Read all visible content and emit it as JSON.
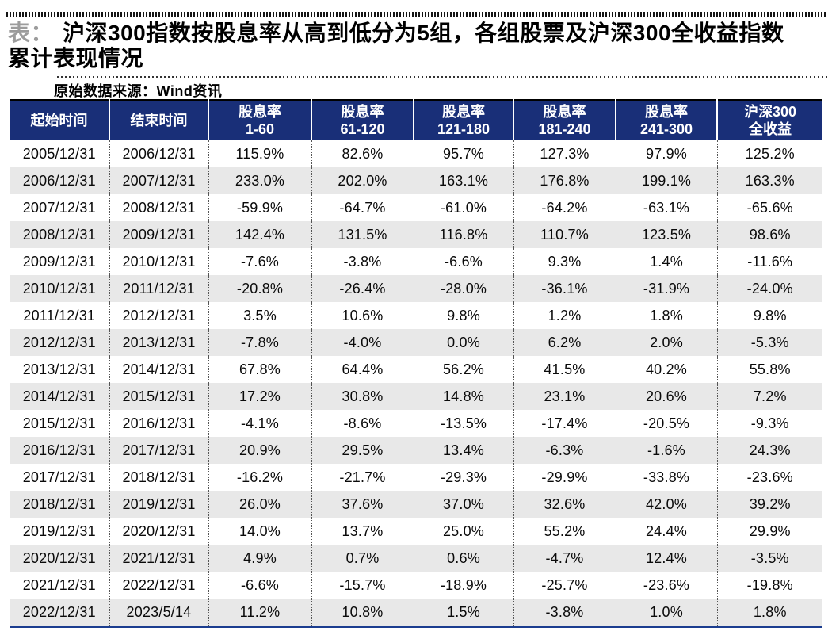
{
  "figure": {
    "title_prefix": "表：",
    "title_line1": "沪深300指数按股息率从高到低分为5组，各组股票及沪深300全收益指数",
    "title_line2": "累计表现情况",
    "source_label": "原始数据来源：Wind资讯"
  },
  "colors": {
    "header_bg": "#192F78",
    "header_text": "#FFFFFF",
    "row_alt_bg": "#E8E8E8",
    "bottom_rule": "#1B3D8F",
    "title_prefix_color": "#9C9C9C"
  },
  "chart_data": {
    "type": "table",
    "title": "沪深300指数按股息率从高到低分为5组，各组股票及沪深300全收益指数累计表现情况",
    "source": "原始数据来源：Wind资讯",
    "columns": [
      {
        "label": "起始时间",
        "sub": ""
      },
      {
        "label": "结束时间",
        "sub": ""
      },
      {
        "label": "股息率",
        "sub": "1-60"
      },
      {
        "label": "股息率",
        "sub": "61-120"
      },
      {
        "label": "股息率",
        "sub": "121-180"
      },
      {
        "label": "股息率",
        "sub": "181-240"
      },
      {
        "label": "股息率",
        "sub": "241-300"
      },
      {
        "label": "沪深300",
        "sub": "全收益"
      }
    ],
    "rows": [
      [
        "2005/12/31",
        "2006/12/31",
        "115.9%",
        "82.6%",
        "95.7%",
        "127.3%",
        "97.9%",
        "125.2%"
      ],
      [
        "2006/12/31",
        "2007/12/31",
        "233.0%",
        "202.0%",
        "163.1%",
        "176.8%",
        "199.1%",
        "163.3%"
      ],
      [
        "2007/12/31",
        "2008/12/31",
        "-59.9%",
        "-64.7%",
        "-61.0%",
        "-64.2%",
        "-63.1%",
        "-65.6%"
      ],
      [
        "2008/12/31",
        "2009/12/31",
        "142.4%",
        "131.5%",
        "116.8%",
        "110.7%",
        "123.5%",
        "98.6%"
      ],
      [
        "2009/12/31",
        "2010/12/31",
        "-7.6%",
        "-3.8%",
        "-6.6%",
        "9.3%",
        "1.4%",
        "-11.6%"
      ],
      [
        "2010/12/31",
        "2011/12/31",
        "-20.8%",
        "-26.4%",
        "-28.0%",
        "-36.1%",
        "-31.9%",
        "-24.0%"
      ],
      [
        "2011/12/31",
        "2012/12/31",
        "3.5%",
        "10.6%",
        "9.8%",
        "1.2%",
        "1.8%",
        "9.8%"
      ],
      [
        "2012/12/31",
        "2013/12/31",
        "-7.8%",
        "-4.0%",
        "0.0%",
        "6.2%",
        "2.0%",
        "-5.3%"
      ],
      [
        "2013/12/31",
        "2014/12/31",
        "67.8%",
        "64.4%",
        "56.2%",
        "41.5%",
        "40.2%",
        "55.8%"
      ],
      [
        "2014/12/31",
        "2015/12/31",
        "17.2%",
        "30.8%",
        "14.8%",
        "23.1%",
        "20.6%",
        "7.2%"
      ],
      [
        "2015/12/31",
        "2016/12/31",
        "-4.1%",
        "-8.6%",
        "-13.5%",
        "-17.4%",
        "-20.5%",
        "-9.3%"
      ],
      [
        "2016/12/31",
        "2017/12/31",
        "20.9%",
        "29.5%",
        "13.4%",
        "-6.3%",
        "-1.6%",
        "24.3%"
      ],
      [
        "2017/12/31",
        "2018/12/31",
        "-16.2%",
        "-21.7%",
        "-29.3%",
        "-29.9%",
        "-33.8%",
        "-23.6%"
      ],
      [
        "2018/12/31",
        "2019/12/31",
        "26.0%",
        "37.6%",
        "37.0%",
        "32.6%",
        "42.0%",
        "39.2%"
      ],
      [
        "2019/12/31",
        "2020/12/31",
        "14.0%",
        "13.7%",
        "25.0%",
        "55.2%",
        "24.4%",
        "29.9%"
      ],
      [
        "2020/12/31",
        "2021/12/31",
        "4.9%",
        "0.7%",
        "0.6%",
        "-4.7%",
        "12.4%",
        "-3.5%"
      ],
      [
        "2021/12/31",
        "2022/12/31",
        "-6.6%",
        "-15.7%",
        "-18.9%",
        "-25.7%",
        "-23.6%",
        "-19.8%"
      ],
      [
        "2022/12/31",
        "2023/5/14",
        "11.2%",
        "10.8%",
        "1.5%",
        "-3.8%",
        "1.0%",
        "1.8%"
      ]
    ]
  }
}
